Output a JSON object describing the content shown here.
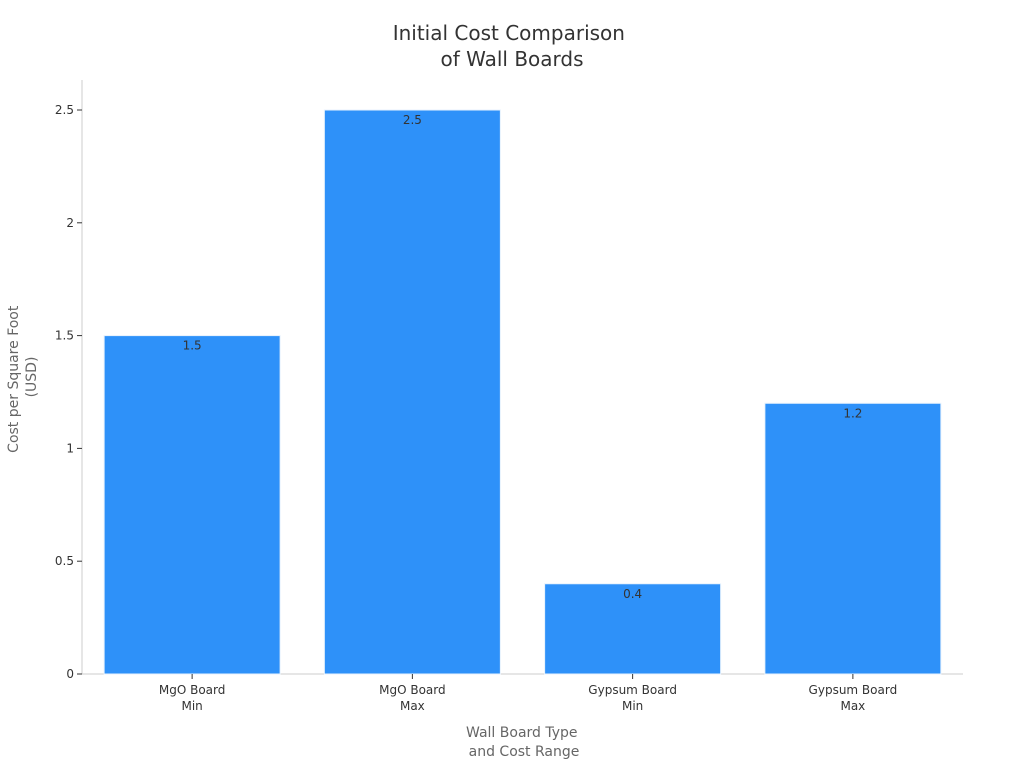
{
  "chart_data": {
    "type": "bar",
    "title": [
      "Initial Cost Comparison",
      "of Wall Boards"
    ],
    "xlabel": [
      "Wall Board Type",
      "and Cost Range"
    ],
    "ylabel": [
      "Cost per Square Foot",
      "(USD)"
    ],
    "categories": [
      [
        "MgO Board",
        "Min"
      ],
      [
        "MgO Board",
        "Max"
      ],
      [
        "Gypsum Board",
        "Min"
      ],
      [
        "Gypsum Board",
        "Max"
      ]
    ],
    "values": [
      1.5,
      2.5,
      0.4,
      1.2
    ],
    "data_labels": [
      "1.5",
      "2.5",
      "0.4",
      "1.2"
    ],
    "yticks": [
      0,
      0.5,
      1,
      1.5,
      2,
      2.5
    ],
    "ytick_labels": [
      "0",
      "0.5",
      "1",
      "1.5",
      "2",
      "2.5"
    ],
    "ylim": [
      0,
      2.63
    ],
    "grid": false,
    "bar_color": "#2e91f9",
    "bar_edge_color": "#e8f2fd",
    "axis_color": "#cccccc"
  }
}
